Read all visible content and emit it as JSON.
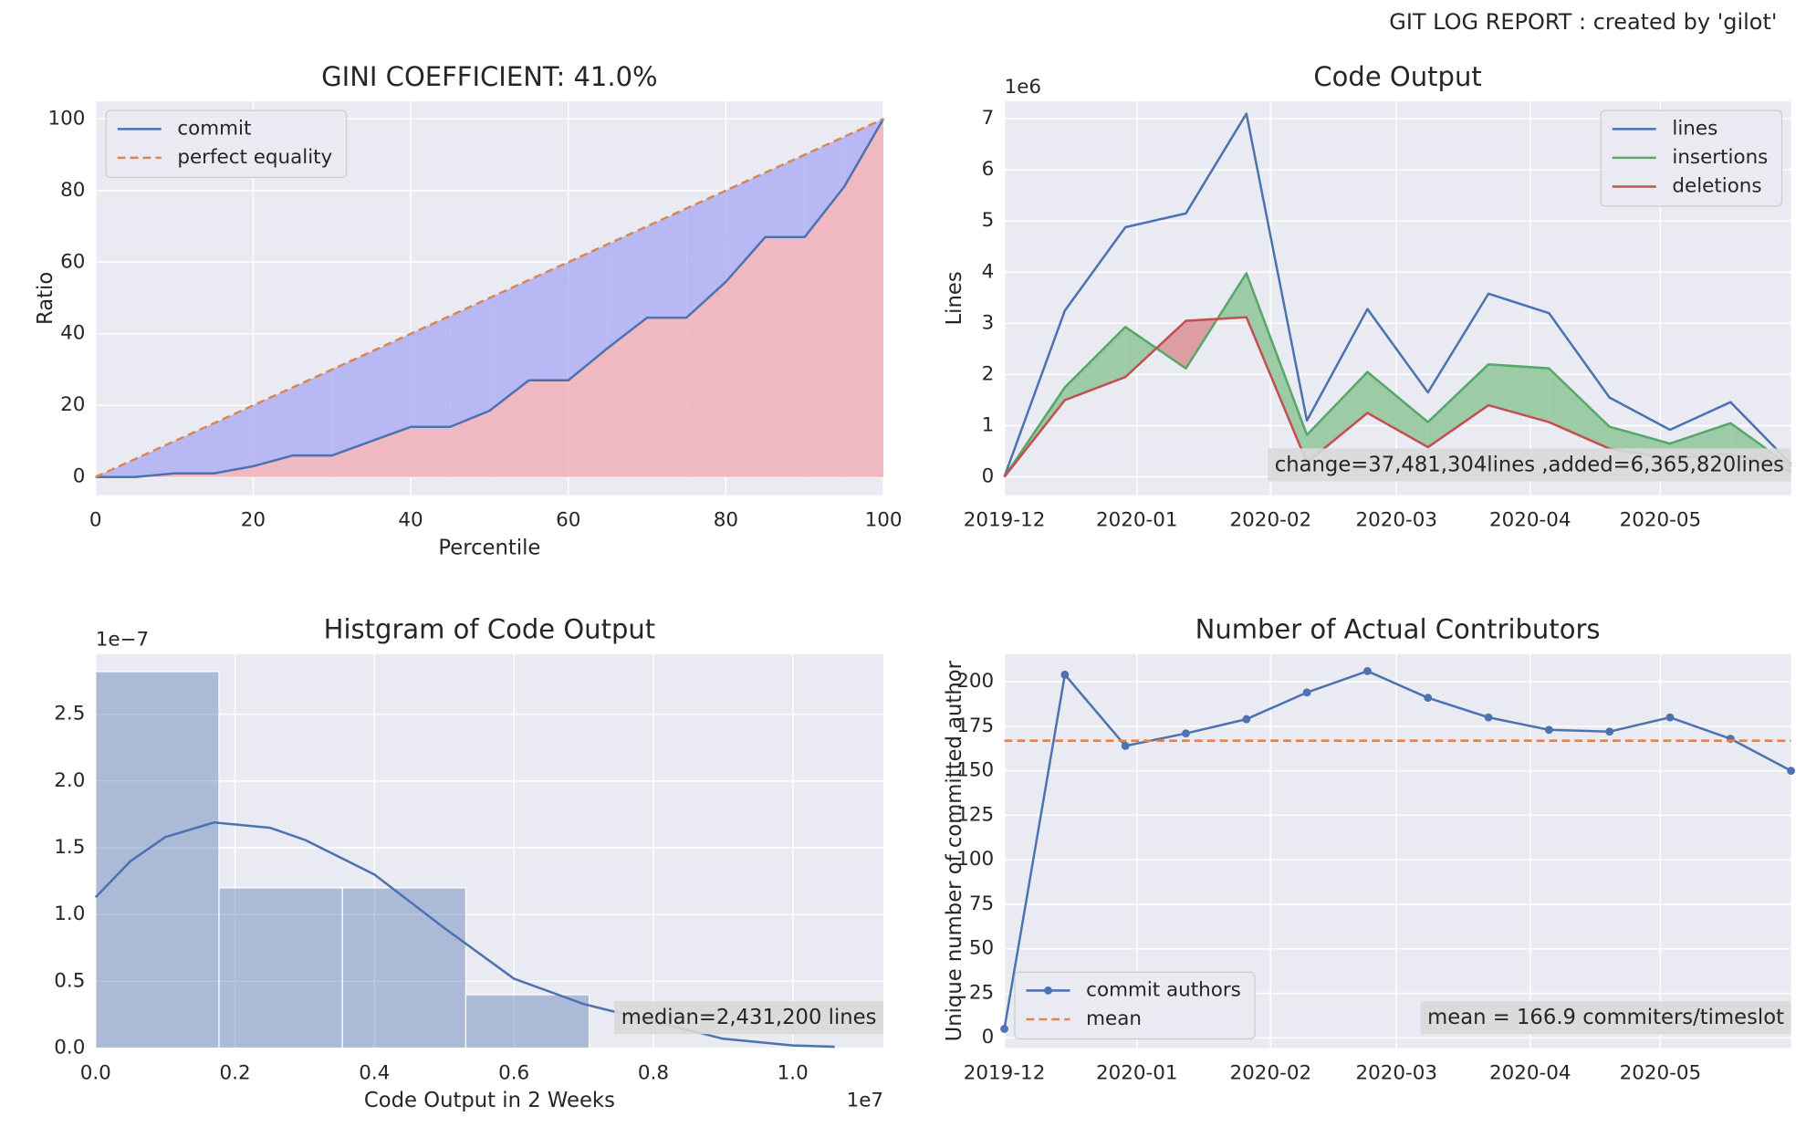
{
  "title": "GIT LOG REPORT : created by 'gilot'",
  "chart_data": [
    {
      "type": "line",
      "title": "GINI COEFFICIENT: 41.0%",
      "xlabel": "Percentile",
      "ylabel": "Ratio",
      "x": [
        0,
        5,
        10,
        15,
        20,
        25,
        30,
        35,
        40,
        45,
        50,
        55,
        60,
        65,
        70,
        75,
        80,
        85,
        90,
        95,
        100
      ],
      "series": [
        {
          "name": "commit",
          "color": "#4c72b0",
          "fill": "#f0b9c1",
          "values": [
            0,
            0,
            1,
            1,
            3,
            6,
            6,
            10,
            14,
            14,
            18.5,
            27,
            27,
            36,
            44.5,
            44.5,
            54.5,
            67,
            67,
            81,
            100
          ]
        },
        {
          "name": "perfect equality",
          "color": "#dd8452",
          "linestyle": "dashed",
          "fill": "#b8b9f4",
          "fill_to": 0,
          "values": [
            0,
            5,
            10,
            15,
            20,
            25,
            30,
            35,
            40,
            45,
            50,
            55,
            60,
            65,
            70,
            75,
            80,
            85,
            90,
            95,
            100
          ]
        }
      ],
      "xlim": [
        0,
        100
      ],
      "xticks": [
        0,
        20,
        40,
        60,
        80,
        100
      ],
      "ylim": [
        -5.1,
        104.9
      ],
      "yticks": [
        0,
        20,
        40,
        60,
        80,
        100
      ],
      "grid": true,
      "legend": "upper left"
    },
    {
      "type": "line",
      "title": "Code Output",
      "ylabel": "Lines",
      "y_offset": "1e6",
      "x": [
        0,
        1,
        2,
        3,
        4,
        5,
        6,
        7,
        8,
        9,
        10,
        11,
        12,
        13
      ],
      "series": [
        {
          "name": "lines",
          "color": "#4c72b0",
          "values": [
            0,
            3.25,
            4.88,
            5.15,
            7.1,
            1.1,
            3.28,
            1.65,
            3.58,
            3.2,
            1.55,
            0.92,
            1.46,
            0.25
          ]
        },
        {
          "name": "insertions",
          "color": "#55a868",
          "fill": "#9ccba6",
          "fill_below": "#dc9ea2",
          "fill_to": 2,
          "values": [
            0,
            1.75,
            2.93,
            2.12,
            3.98,
            0.82,
            2.05,
            1.07,
            2.2,
            2.12,
            0.98,
            0.65,
            1.05,
            0.2
          ]
        },
        {
          "name": "deletions",
          "color": "#c44e52",
          "values": [
            0,
            1.5,
            1.95,
            3.05,
            3.12,
            0.28,
            1.25,
            0.58,
            1.4,
            1.07,
            0.55,
            0.35,
            0.45,
            0.1
          ]
        }
      ],
      "xlim": [
        0,
        13
      ],
      "xticks": [
        {
          "value": 0,
          "label": "2019-12"
        },
        {
          "value": 2.19,
          "label": "2020-01"
        },
        {
          "value": 4.4,
          "label": "2020-02"
        },
        {
          "value": 6.48,
          "label": "2020-03"
        },
        {
          "value": 8.69,
          "label": "2020-04"
        },
        {
          "value": 10.84,
          "label": "2020-05"
        }
      ],
      "ylim": [
        -0.36,
        7.34
      ],
      "yticks": [
        0,
        1,
        2,
        3,
        4,
        5,
        6,
        7
      ],
      "grid": true,
      "legend": "upper right",
      "annotation": "change=37,481,304lines ,added=6,365,820lines"
    },
    {
      "type": "histogram",
      "title": "Histgram of Code Output",
      "xlabel": "Code Output in 2 Weeks",
      "x_offset": "1e7",
      "y_offset": "1e−7",
      "bins": [
        0,
        0.177,
        0.354,
        0.531,
        0.708
      ],
      "values": [
        2.82,
        1.2,
        1.2,
        0.4
      ],
      "color": "#4c72b0",
      "alpha": 0.4,
      "series": [
        {
          "color": "#4c72b0",
          "x": [
            0,
            0.05,
            0.1,
            0.17,
            0.25,
            0.3,
            0.4,
            0.5,
            0.6,
            0.7,
            0.8,
            0.9,
            1.0,
            1.06
          ],
          "values": [
            1.13,
            1.4,
            1.58,
            1.69,
            1.65,
            1.56,
            1.3,
            0.9,
            0.52,
            0.33,
            0.2,
            0.07,
            0.02,
            0.01
          ]
        }
      ],
      "xlim": [
        0,
        1.13
      ],
      "xticks": [
        {
          "value": 0,
          "label": "0.0"
        },
        0.2,
        0.4,
        0.6,
        0.8,
        {
          "value": 1,
          "label": "1.0"
        }
      ],
      "ylim": [
        0,
        2.95
      ],
      "yticks": [
        {
          "value": 0,
          "label": "0.0"
        },
        0.5,
        {
          "value": 1,
          "label": "1.0"
        },
        1.5,
        {
          "value": 2,
          "label": "2.0"
        },
        2.5
      ],
      "grid": true,
      "annotation": "median=2,431,200 lines"
    },
    {
      "type": "line",
      "title": "Number of Actual Contributors",
      "ylabel": "Unique number of committed author",
      "x": [
        0,
        1,
        2,
        3,
        4,
        5,
        6,
        7,
        8,
        9,
        10,
        11,
        12,
        13
      ],
      "series": [
        {
          "name": "commit authors",
          "color": "#4c72b0",
          "marker": "o",
          "values": [
            5,
            204,
            164,
            171,
            179,
            194,
            206,
            191,
            180,
            173,
            172,
            180,
            168,
            150
          ]
        },
        {
          "name": "mean",
          "color": "#dd8452",
          "linestyle": "dashed",
          "hline": 166.9
        }
      ],
      "xlim": [
        0,
        13
      ],
      "xticks": [
        {
          "value": 0,
          "label": "2019-12"
        },
        {
          "value": 2.19,
          "label": "2020-01"
        },
        {
          "value": 4.4,
          "label": "2020-02"
        },
        {
          "value": 6.48,
          "label": "2020-03"
        },
        {
          "value": 8.69,
          "label": "2020-04"
        },
        {
          "value": 10.84,
          "label": "2020-05"
        }
      ],
      "ylim": [
        -5.8,
        215.5
      ],
      "yticks": [
        0,
        25,
        50,
        75,
        100,
        125,
        150,
        175,
        200
      ],
      "grid": true,
      "legend": "lower left",
      "annotation": "mean = 166.9 commiters/timeslot"
    }
  ]
}
